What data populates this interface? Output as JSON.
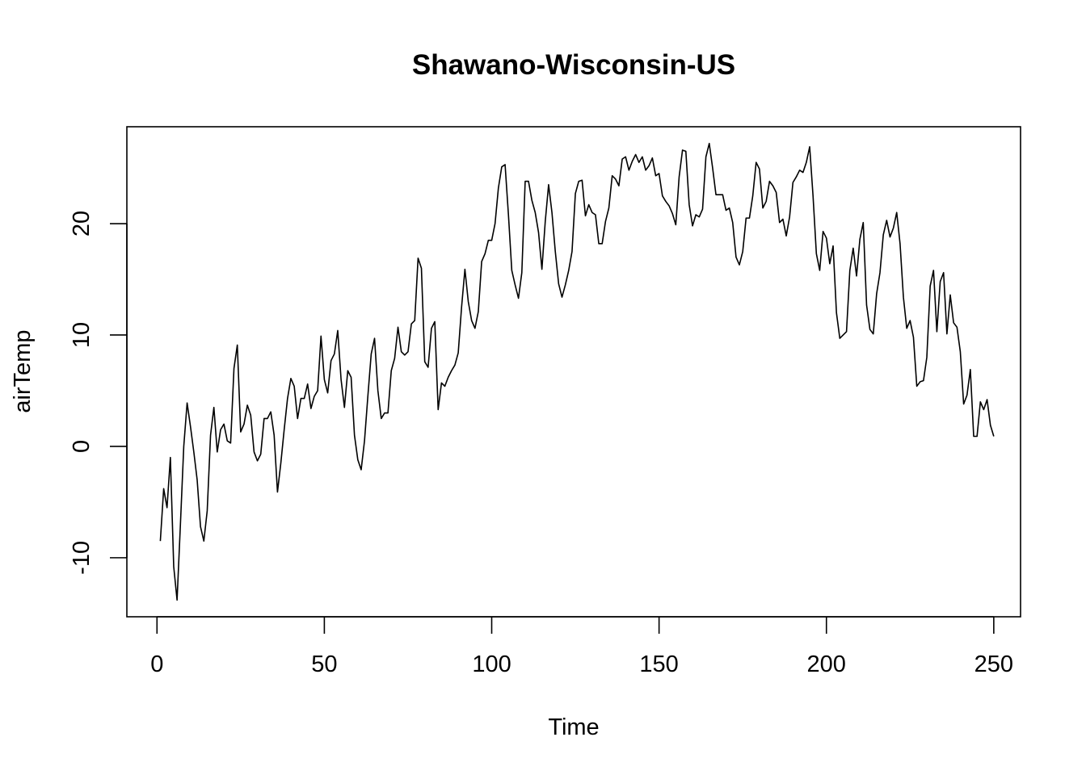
{
  "chart_data": {
    "type": "line",
    "title": "Shawano-Wisconsin-US",
    "xlabel": "Time",
    "ylabel": "airTemp",
    "xlim": [
      -9,
      258
    ],
    "ylim": [
      -15.3,
      28.7
    ],
    "x_ticks": [
      0,
      50,
      100,
      150,
      200,
      250
    ],
    "x_tick_labels": [
      "0",
      "50",
      "100",
      "150",
      "200",
      "250"
    ],
    "y_ticks": [
      -10,
      0,
      10,
      20
    ],
    "y_tick_labels": [
      "-10",
      "0",
      "10",
      "20"
    ],
    "grid": false,
    "legend": "none",
    "colors": {
      "line": "#000000",
      "background": "#ffffff"
    },
    "series": [
      {
        "x_start": 1,
        "values": [
          -8.5,
          -3.8,
          -5.5,
          -1.0,
          -10.8,
          -13.8,
          -7.0,
          0.0,
          3.9,
          1.8,
          -0.5,
          -3.0,
          -7.2,
          -8.5,
          -5.8,
          1.0,
          3.5,
          -0.5,
          1.5,
          2.0,
          0.5,
          0.3,
          7.0,
          9.1,
          1.3,
          2.0,
          3.7,
          2.8,
          -0.5,
          -1.3,
          -0.7,
          2.5,
          2.5,
          3.1,
          1.0,
          -4.1,
          -1.5,
          1.5,
          4.3,
          6.1,
          5.4,
          2.5,
          4.3,
          4.3,
          5.6,
          3.4,
          4.5,
          5.0,
          9.9,
          6.0,
          4.8,
          7.7,
          8.3,
          10.4,
          6.0,
          3.5,
          6.8,
          6.2,
          1.0,
          -1.2,
          -2.1,
          0.5,
          4.5,
          8.3,
          9.7,
          5.0,
          2.5,
          3.0,
          3.0,
          6.8,
          7.9,
          10.7,
          8.5,
          8.2,
          8.5,
          11.0,
          11.3,
          16.9,
          16.0,
          7.6,
          7.1,
          10.6,
          11.2,
          3.3,
          5.7,
          5.4,
          6.2,
          6.8,
          7.3,
          8.4,
          12.5,
          15.9,
          13.0,
          11.3,
          10.6,
          12.1,
          16.6,
          17.3,
          18.5,
          18.5,
          20.0,
          23.2,
          25.1,
          25.3,
          20.8,
          15.8,
          14.5,
          13.3,
          15.6,
          23.8,
          23.8,
          22.1,
          21.0,
          19.2,
          15.9,
          20.2,
          23.5,
          21.0,
          17.5,
          14.6,
          13.4,
          14.5,
          15.8,
          17.5,
          22.7,
          23.8,
          23.9,
          20.7,
          21.7,
          21.0,
          20.8,
          18.2,
          18.2,
          20.2,
          21.4,
          24.3,
          24.0,
          23.4,
          25.8,
          26.0,
          24.8,
          25.6,
          26.2,
          25.5,
          26.0,
          24.8,
          25.2,
          25.9,
          24.3,
          24.5,
          22.5,
          22.0,
          21.6,
          20.9,
          19.9,
          24.2,
          26.6,
          26.5,
          21.7,
          19.8,
          20.8,
          20.6,
          21.3,
          26.0,
          27.2,
          25.0,
          22.6,
          22.6,
          22.6,
          21.2,
          21.4,
          20.1,
          17.0,
          16.3,
          17.5,
          20.5,
          20.5,
          22.5,
          25.5,
          24.9,
          21.4,
          22.0,
          23.8,
          23.4,
          22.8,
          20.1,
          20.4,
          18.9,
          20.6,
          23.7,
          24.2,
          24.8,
          24.6,
          25.5,
          26.9,
          22.5,
          17.3,
          15.8,
          19.3,
          18.7,
          16.4,
          18.0,
          12.0,
          9.7,
          10.0,
          10.3,
          15.8,
          17.8,
          15.3,
          18.6,
          20.1,
          12.7,
          10.5,
          10.1,
          13.7,
          15.6,
          19.0,
          20.3,
          18.8,
          19.6,
          21.0,
          18.2,
          13.4,
          10.6,
          11.3,
          9.8,
          5.4,
          5.8,
          5.9,
          8.0,
          14.4,
          15.8,
          10.3,
          14.8,
          15.6,
          10.1,
          13.6,
          11.1,
          10.7,
          8.5,
          3.8,
          4.6,
          6.9,
          0.9,
          0.9,
          4.0,
          3.3,
          4.2,
          1.9,
          0.9
        ]
      }
    ]
  }
}
